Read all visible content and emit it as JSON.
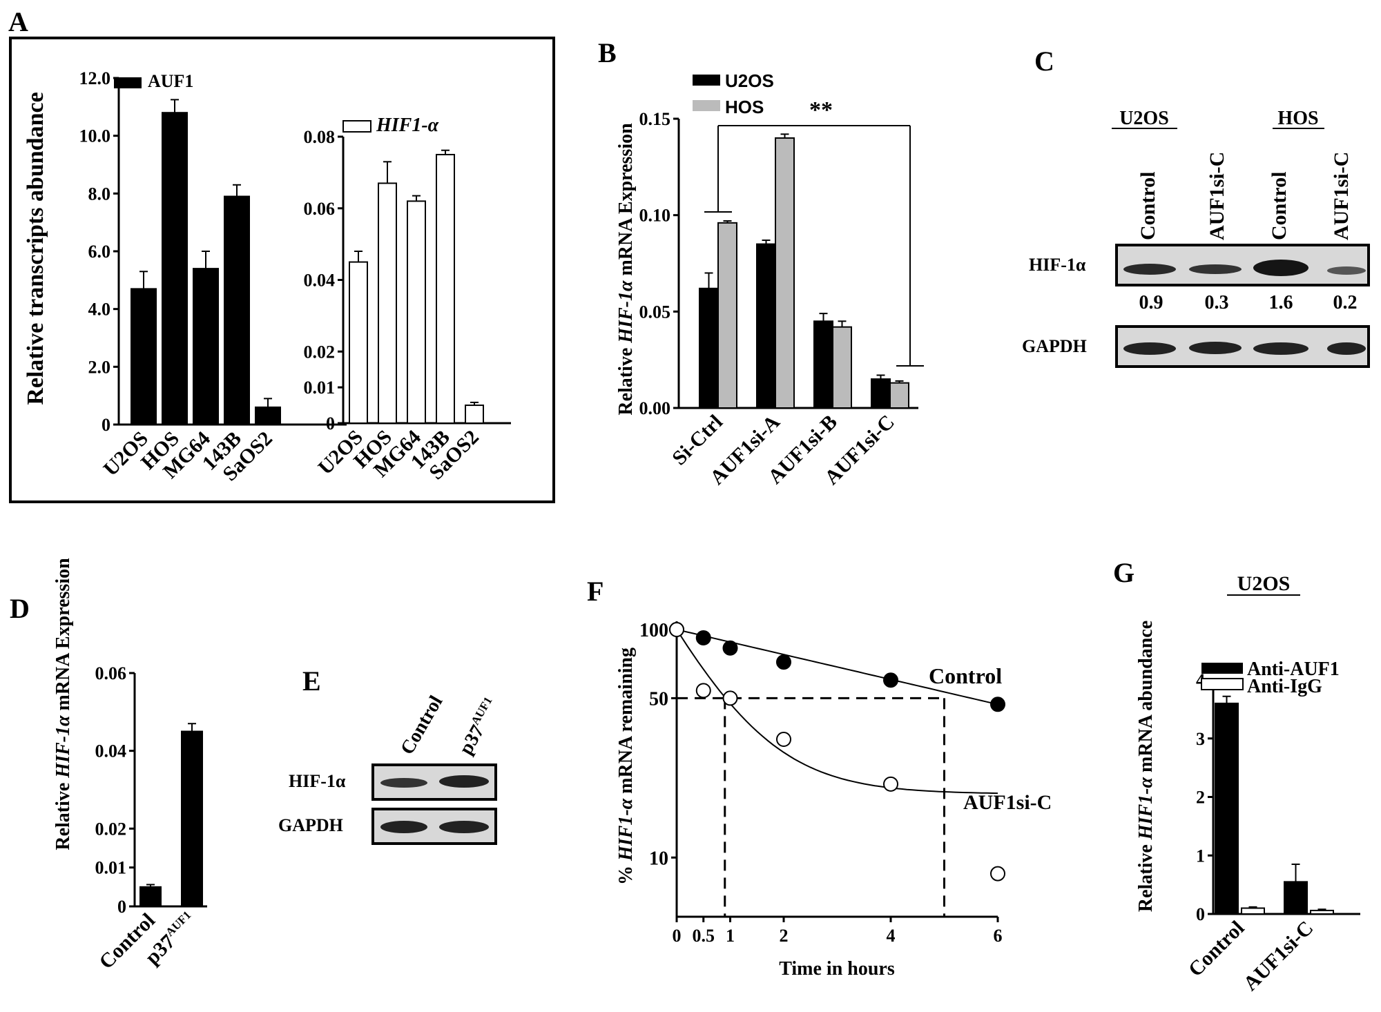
{
  "panels": {
    "A": "A",
    "B": "B",
    "C": "C",
    "D": "D",
    "E": "E",
    "F": "F",
    "G": "G"
  },
  "chart_data": [
    {
      "id": "A1",
      "type": "bar",
      "ylabel": "Relative transcripts abundance",
      "ylim": [
        0,
        12
      ],
      "yticks": [
        0,
        2,
        4,
        6,
        8,
        10,
        12
      ],
      "ytick_labels": [
        "0",
        "2.0",
        "4.0",
        "6.0",
        "8.0",
        "10.0",
        "12.0"
      ],
      "categories": [
        "U2OS",
        "HOS",
        "MG64",
        "143B",
        "SaOS2"
      ],
      "series": [
        {
          "name": "AUF1",
          "values": [
            4.7,
            10.8,
            5.4,
            7.9,
            0.6
          ],
          "errors": [
            0.6,
            0.45,
            0.6,
            0.4,
            0.3
          ],
          "color": "#000000"
        }
      ]
    },
    {
      "id": "A2",
      "type": "bar",
      "ylim": [
        0,
        0.08
      ],
      "yticks": [
        0,
        0.01,
        0.02,
        0.04,
        0.06,
        0.08
      ],
      "ytick_labels": [
        "0",
        "0.01",
        "0.02",
        "0.04",
        "0.06",
        "0.08"
      ],
      "categories": [
        "U2OS",
        "HOS",
        "MG64",
        "143B",
        "SaOS2"
      ],
      "series": [
        {
          "name": "HIF1-α",
          "values": [
            0.045,
            0.067,
            0.062,
            0.075,
            0.005
          ],
          "errors": [
            0.003,
            0.006,
            0.0015,
            0.0012,
            0.0008
          ],
          "color": "#ffffff"
        }
      ]
    },
    {
      "id": "B",
      "type": "bar",
      "ylabel_pre": "Relative ",
      "ylabel_italic": "HIF-1α",
      "ylabel_post": " mRNA Expression",
      "ylim": [
        0,
        0.15
      ],
      "yticks": [
        0,
        0.05,
        0.1,
        0.15
      ],
      "ytick_labels": [
        "0.00",
        "0.05",
        "0.10",
        "0.15"
      ],
      "categories": [
        "Si-Ctrl",
        "AUF1si-A",
        "AUF1si-B",
        "AUF1si-C"
      ],
      "series": [
        {
          "name": "U2OS",
          "values": [
            0.062,
            0.085,
            0.045,
            0.015
          ],
          "errors": [
            0.008,
            0.002,
            0.004,
            0.002
          ],
          "color": "#000000"
        },
        {
          "name": "HOS",
          "values": [
            0.096,
            0.14,
            0.042,
            0.013
          ],
          "errors": [
            0.001,
            0.002,
            0.003,
            0.001
          ],
          "color": "#bbbbbb"
        }
      ],
      "annotation": "**"
    },
    {
      "id": "D",
      "type": "bar",
      "ylabel_pre": "Relative ",
      "ylabel_italic": "HIF-1α",
      "ylabel_post": " mRNA Expression",
      "ylim": [
        0,
        0.06
      ],
      "yticks": [
        0,
        0.01,
        0.02,
        0.04,
        0.06
      ],
      "ytick_labels": [
        "0",
        "0.01",
        "0.02",
        "0.04",
        "0.06"
      ],
      "categories": [
        "Control",
        "p37"
      ],
      "category_sup": [
        "",
        "AUF1"
      ],
      "series": [
        {
          "name": "",
          "values": [
            0.005,
            0.045
          ],
          "errors": [
            0.0006,
            0.002
          ],
          "color": "#000000"
        }
      ]
    },
    {
      "id": "F",
      "type": "scatter",
      "ylabel_pre": "% ",
      "ylabel_italic": "HIF1-α",
      "ylabel_post": " mRNA remaining",
      "xlabel": "Time in hours",
      "xticks": [
        0,
        0.5,
        1,
        2,
        4,
        6
      ],
      "xtick_labels": [
        "0",
        "0.5",
        "1",
        "2",
        "4",
        "6"
      ],
      "yticks": [
        10,
        50,
        100
      ],
      "ytick_labels": [
        "10",
        "50",
        "100"
      ],
      "series": [
        {
          "name": "Control",
          "x": [
            0,
            0.5,
            1,
            2,
            4,
            6
          ],
          "y": [
            100,
            92,
            83,
            72,
            60,
            47
          ],
          "filled": true
        },
        {
          "name": "AUF1si-C",
          "x": [
            0,
            0.5,
            1,
            2,
            4,
            6
          ],
          "y": [
            100,
            54,
            50,
            33,
            21,
            8.5
          ],
          "filled": false
        }
      ],
      "dashed_y": 50,
      "dashed_x": [
        0.9,
        5.0
      ]
    },
    {
      "id": "G",
      "type": "bar",
      "title": "U2OS",
      "ylabel_pre": "Relative ",
      "ylabel_italic": "HIF1-α",
      "ylabel_post": " mRNA abundance",
      "ylim": [
        0,
        4
      ],
      "yticks": [
        0,
        1,
        2,
        3,
        4
      ],
      "ytick_labels": [
        "0",
        "1",
        "2",
        "3",
        "4"
      ],
      "categories": [
        "Control",
        "AUF1si-C"
      ],
      "series": [
        {
          "name": "Anti-AUF1",
          "values": [
            3.6,
            0.55
          ],
          "errors": [
            0.12,
            0.3
          ],
          "color": "#000000"
        },
        {
          "name": "Anti-IgG",
          "values": [
            0.1,
            0.06
          ],
          "errors": [
            0.02,
            0.02
          ],
          "color": "#ffffff"
        }
      ]
    }
  ],
  "blot_C": {
    "groups": [
      "U2OS",
      "HOS"
    ],
    "lanes": [
      "Control",
      "AUF1si-C",
      "Control",
      "AUF1si-C"
    ],
    "rows": [
      "HIF-1α",
      "GAPDH"
    ],
    "values": [
      "0.9",
      "0.3",
      "1.6",
      "0.2"
    ]
  },
  "blot_E": {
    "lanes": [
      "Control",
      "p37"
    ],
    "lane_sup": [
      "",
      "AUF1"
    ],
    "rows": [
      "HIF-1α",
      "GAPDH"
    ]
  }
}
